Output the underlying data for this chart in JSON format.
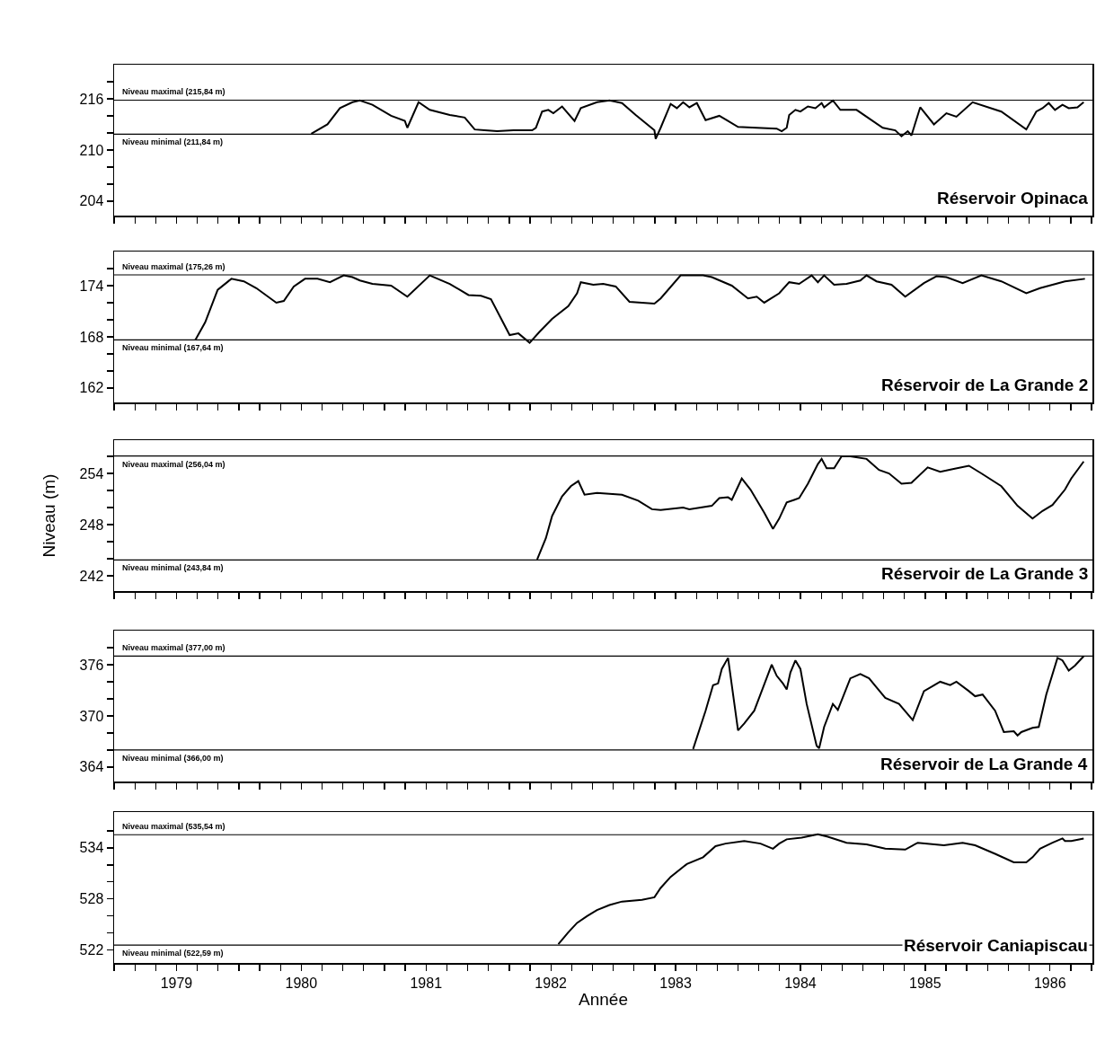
{
  "chart_data": [
    {
      "type": "line",
      "title": "Réservoir Opinaca",
      "tick_labels": "y",
      "grid": false,
      "line_style": "solid",
      "marker": "none",
      "xlim": [
        1979,
        1986.84
      ],
      "xticks": [
        {
          "value": 1979,
          "label": null
        },
        {
          "value": 1979.167,
          "label": null
        },
        {
          "value": 1979.333,
          "label": null
        },
        {
          "value": 1979.5,
          "label": null
        },
        {
          "value": 1979.667,
          "label": null
        },
        {
          "value": 1979.833,
          "label": null
        },
        {
          "value": 1980,
          "label": null
        },
        {
          "value": 1980.167,
          "label": null
        },
        {
          "value": 1980.333,
          "label": null
        },
        {
          "value": 1980.5,
          "label": null
        },
        {
          "value": 1980.667,
          "label": null
        },
        {
          "value": 1980.833,
          "label": null
        },
        {
          "value": 1981,
          "label": null
        },
        {
          "value": 1981.167,
          "label": null
        },
        {
          "value": 1981.333,
          "label": null
        },
        {
          "value": 1981.5,
          "label": null
        },
        {
          "value": 1981.667,
          "label": null
        },
        {
          "value": 1981.833,
          "label": null
        },
        {
          "value": 1982,
          "label": null
        },
        {
          "value": 1982.167,
          "label": null
        },
        {
          "value": 1982.333,
          "label": null
        },
        {
          "value": 1982.5,
          "label": null
        },
        {
          "value": 1982.667,
          "label": null
        },
        {
          "value": 1982.833,
          "label": null
        },
        {
          "value": 1983,
          "label": null
        },
        {
          "value": 1983.167,
          "label": null
        },
        {
          "value": 1983.333,
          "label": null
        },
        {
          "value": 1983.5,
          "label": null
        },
        {
          "value": 1983.667,
          "label": null
        },
        {
          "value": 1983.833,
          "label": null
        },
        {
          "value": 1984,
          "label": null
        },
        {
          "value": 1984.167,
          "label": null
        },
        {
          "value": 1984.333,
          "label": null
        },
        {
          "value": 1984.5,
          "label": null
        },
        {
          "value": 1984.667,
          "label": null
        },
        {
          "value": 1984.833,
          "label": null
        },
        {
          "value": 1985,
          "label": null
        },
        {
          "value": 1985.167,
          "label": null
        },
        {
          "value": 1985.333,
          "label": null
        },
        {
          "value": 1985.5,
          "label": null
        },
        {
          "value": 1985.667,
          "label": null
        },
        {
          "value": 1985.833,
          "label": null
        },
        {
          "value": 1986,
          "label": null
        },
        {
          "value": 1986.167,
          "label": null
        },
        {
          "value": 1986.333,
          "label": null
        },
        {
          "value": 1986.5,
          "label": null
        },
        {
          "value": 1986.667,
          "label": null
        },
        {
          "value": 1986.833,
          "label": null
        }
      ],
      "ylim": [
        202.3,
        220
      ],
      "yticks": [
        204,
        {
          "value": 206,
          "label": null
        },
        {
          "value": 208,
          "label": null
        },
        210,
        {
          "value": 212,
          "label": null
        },
        {
          "value": 214,
          "label": null
        },
        216,
        {
          "value": 218,
          "label": null
        }
      ],
      "ref_lines": [
        {
          "axis": "y",
          "value": 215.84,
          "label": "Niveau maximal (215,84 m)",
          "color": "#000000"
        },
        {
          "axis": "y",
          "value": 211.84,
          "label": "Niveau minimal (211,84 m)",
          "color": "#000000"
        }
      ],
      "series": [
        {
          "color": "#000000",
          "x": [
            1980.58,
            1980.71,
            1980.81,
            1980.91,
            1980.97,
            1981.07,
            1981.22,
            1981.33,
            1981.35,
            1981.44,
            1981.53,
            1981.69,
            1981.81,
            1981.89,
            1981.97,
            1982.07,
            1982.2,
            1982.35,
            1982.38,
            1982.43,
            1982.48,
            1982.52,
            1982.59,
            1982.69,
            1982.74,
            1982.87,
            1982.97,
            1983.07,
            1983.18,
            1983.33,
            1983.34,
            1983.38,
            1983.46,
            1983.51,
            1983.56,
            1983.61,
            1983.67,
            1983.74,
            1983.85,
            1983.92,
            1984.0,
            1984.15,
            1984.31,
            1984.35,
            1984.39,
            1984.41,
            1984.46,
            1984.5,
            1984.56,
            1984.62,
            1984.67,
            1984.69,
            1984.76,
            1984.82,
            1984.95,
            1985.16,
            1985.26,
            1985.31,
            1985.36,
            1985.39,
            1985.46,
            1985.57,
            1985.67,
            1985.75,
            1985.88,
            1986.11,
            1986.31,
            1986.39,
            1986.44,
            1986.49,
            1986.54,
            1986.6,
            1986.65,
            1986.72,
            1986.77
          ],
          "values": [
            211.9,
            213.0,
            214.9,
            215.6,
            215.8,
            215.3,
            214.0,
            213.4,
            212.6,
            215.6,
            214.7,
            214.1,
            213.8,
            212.4,
            212.3,
            212.2,
            212.3,
            212.3,
            212.6,
            214.5,
            214.7,
            214.3,
            215.1,
            213.4,
            214.9,
            215.6,
            215.8,
            215.5,
            214.1,
            212.3,
            211.3,
            212.6,
            215.4,
            214.9,
            215.6,
            215.0,
            215.5,
            213.5,
            214.0,
            213.4,
            212.7,
            212.6,
            212.5,
            212.2,
            212.6,
            214.1,
            214.7,
            214.5,
            215.1,
            214.9,
            215.5,
            215.0,
            215.8,
            214.7,
            214.7,
            212.6,
            212.3,
            211.6,
            212.2,
            211.7,
            215.0,
            213.0,
            214.3,
            213.9,
            215.6,
            214.5,
            212.4,
            214.5,
            214.9,
            215.5,
            214.7,
            215.3,
            214.9,
            215.0,
            215.6
          ]
        }
      ]
    },
    {
      "type": "line",
      "title": "Réservoir de La Grande 2",
      "tick_labels": "y",
      "grid": false,
      "line_style": "solid",
      "marker": "none",
      "xlim": [
        1979,
        1986.84
      ],
      "xticks": [
        {
          "value": 1979,
          "label": null
        },
        {
          "value": 1979.167,
          "label": null
        },
        {
          "value": 1979.333,
          "label": null
        },
        {
          "value": 1979.5,
          "label": null
        },
        {
          "value": 1979.667,
          "label": null
        },
        {
          "value": 1979.833,
          "label": null
        },
        {
          "value": 1980,
          "label": null
        },
        {
          "value": 1980.167,
          "label": null
        },
        {
          "value": 1980.333,
          "label": null
        },
        {
          "value": 1980.5,
          "label": null
        },
        {
          "value": 1980.667,
          "label": null
        },
        {
          "value": 1980.833,
          "label": null
        },
        {
          "value": 1981,
          "label": null
        },
        {
          "value": 1981.167,
          "label": null
        },
        {
          "value": 1981.333,
          "label": null
        },
        {
          "value": 1981.5,
          "label": null
        },
        {
          "value": 1981.667,
          "label": null
        },
        {
          "value": 1981.833,
          "label": null
        },
        {
          "value": 1982,
          "label": null
        },
        {
          "value": 1982.167,
          "label": null
        },
        {
          "value": 1982.333,
          "label": null
        },
        {
          "value": 1982.5,
          "label": null
        },
        {
          "value": 1982.667,
          "label": null
        },
        {
          "value": 1982.833,
          "label": null
        },
        {
          "value": 1983,
          "label": null
        },
        {
          "value": 1983.167,
          "label": null
        },
        {
          "value": 1983.333,
          "label": null
        },
        {
          "value": 1983.5,
          "label": null
        },
        {
          "value": 1983.667,
          "label": null
        },
        {
          "value": 1983.833,
          "label": null
        },
        {
          "value": 1984,
          "label": null
        },
        {
          "value": 1984.167,
          "label": null
        },
        {
          "value": 1984.333,
          "label": null
        },
        {
          "value": 1984.5,
          "label": null
        },
        {
          "value": 1984.667,
          "label": null
        },
        {
          "value": 1984.833,
          "label": null
        },
        {
          "value": 1985,
          "label": null
        },
        {
          "value": 1985.167,
          "label": null
        },
        {
          "value": 1985.333,
          "label": null
        },
        {
          "value": 1985.5,
          "label": null
        },
        {
          "value": 1985.667,
          "label": null
        },
        {
          "value": 1985.833,
          "label": null
        },
        {
          "value": 1986,
          "label": null
        },
        {
          "value": 1986.167,
          "label": null
        },
        {
          "value": 1986.333,
          "label": null
        },
        {
          "value": 1986.5,
          "label": null
        },
        {
          "value": 1986.667,
          "label": null
        },
        {
          "value": 1986.833,
          "label": null
        }
      ],
      "ylim": [
        160.3,
        178
      ],
      "yticks": [
        162,
        {
          "value": 164,
          "label": null
        },
        {
          "value": 166,
          "label": null
        },
        168,
        {
          "value": 170,
          "label": null
        },
        {
          "value": 172,
          "label": null
        },
        174,
        {
          "value": 176,
          "label": null
        }
      ],
      "ref_lines": [
        {
          "axis": "y",
          "value": 175.26,
          "label": "Niveau maximal (175,26 m)",
          "color": "#000000"
        },
        {
          "axis": "y",
          "value": 167.64,
          "label": "Niveau minimal (167,64 m)",
          "color": "#000000"
        }
      ],
      "series": [
        {
          "color": "#000000",
          "x": [
            1979.65,
            1979.73,
            1979.83,
            1979.94,
            1980.04,
            1980.14,
            1980.3,
            1980.36,
            1980.44,
            1980.53,
            1980.63,
            1980.73,
            1980.84,
            1980.91,
            1980.97,
            1981.07,
            1981.22,
            1981.35,
            1981.53,
            1981.69,
            1981.84,
            1981.94,
            1982.02,
            1982.17,
            1982.24,
            1982.33,
            1982.41,
            1982.51,
            1982.64,
            1982.71,
            1982.74,
            1982.84,
            1982.92,
            1983.02,
            1983.13,
            1983.33,
            1983.38,
            1983.54,
            1983.72,
            1983.79,
            1983.95,
            1984.08,
            1984.15,
            1984.21,
            1984.33,
            1984.41,
            1984.49,
            1984.59,
            1984.64,
            1984.69,
            1984.77,
            1984.87,
            1984.98,
            1985.03,
            1985.11,
            1985.23,
            1985.34,
            1985.49,
            1985.59,
            1985.67,
            1985.8,
            1985.95,
            1986.11,
            1986.31,
            1986.42,
            1986.62,
            1986.78
          ],
          "values": [
            167.6,
            169.7,
            173.5,
            174.8,
            174.5,
            173.7,
            172.0,
            172.2,
            173.9,
            174.8,
            174.8,
            174.4,
            175.2,
            175.0,
            174.6,
            174.2,
            174.0,
            172.7,
            175.2,
            174.2,
            172.9,
            172.8,
            172.4,
            168.2,
            168.4,
            167.3,
            168.6,
            170.1,
            171.6,
            173.1,
            174.4,
            174.1,
            174.2,
            173.9,
            172.1,
            171.9,
            172.5,
            175.2,
            175.2,
            175.0,
            174.0,
            172.5,
            172.7,
            172.0,
            173.1,
            174.4,
            174.2,
            175.2,
            174.4,
            175.2,
            174.1,
            174.2,
            174.6,
            175.2,
            174.5,
            174.1,
            172.7,
            174.3,
            175.1,
            175.0,
            174.3,
            175.2,
            174.5,
            173.1,
            173.7,
            174.5,
            174.8
          ]
        }
      ]
    },
    {
      "type": "line",
      "title": "Réservoir de La Grande 3",
      "ylabel": "Niveau (m)",
      "tick_labels": "y",
      "grid": false,
      "line_style": "solid",
      "marker": "none",
      "xlim": [
        1979,
        1986.84
      ],
      "xticks": [
        {
          "value": 1979,
          "label": null
        },
        {
          "value": 1979.167,
          "label": null
        },
        {
          "value": 1979.333,
          "label": null
        },
        {
          "value": 1979.5,
          "label": null
        },
        {
          "value": 1979.667,
          "label": null
        },
        {
          "value": 1979.833,
          "label": null
        },
        {
          "value": 1980,
          "label": null
        },
        {
          "value": 1980.167,
          "label": null
        },
        {
          "value": 1980.333,
          "label": null
        },
        {
          "value": 1980.5,
          "label": null
        },
        {
          "value": 1980.667,
          "label": null
        },
        {
          "value": 1980.833,
          "label": null
        },
        {
          "value": 1981,
          "label": null
        },
        {
          "value": 1981.167,
          "label": null
        },
        {
          "value": 1981.333,
          "label": null
        },
        {
          "value": 1981.5,
          "label": null
        },
        {
          "value": 1981.667,
          "label": null
        },
        {
          "value": 1981.833,
          "label": null
        },
        {
          "value": 1982,
          "label": null
        },
        {
          "value": 1982.167,
          "label": null
        },
        {
          "value": 1982.333,
          "label": null
        },
        {
          "value": 1982.5,
          "label": null
        },
        {
          "value": 1982.667,
          "label": null
        },
        {
          "value": 1982.833,
          "label": null
        },
        {
          "value": 1983,
          "label": null
        },
        {
          "value": 1983.167,
          "label": null
        },
        {
          "value": 1983.333,
          "label": null
        },
        {
          "value": 1983.5,
          "label": null
        },
        {
          "value": 1983.667,
          "label": null
        },
        {
          "value": 1983.833,
          "label": null
        },
        {
          "value": 1984,
          "label": null
        },
        {
          "value": 1984.167,
          "label": null
        },
        {
          "value": 1984.333,
          "label": null
        },
        {
          "value": 1984.5,
          "label": null
        },
        {
          "value": 1984.667,
          "label": null
        },
        {
          "value": 1984.833,
          "label": null
        },
        {
          "value": 1985,
          "label": null
        },
        {
          "value": 1985.167,
          "label": null
        },
        {
          "value": 1985.333,
          "label": null
        },
        {
          "value": 1985.5,
          "label": null
        },
        {
          "value": 1985.667,
          "label": null
        },
        {
          "value": 1985.833,
          "label": null
        },
        {
          "value": 1986,
          "label": null
        },
        {
          "value": 1986.167,
          "label": null
        },
        {
          "value": 1986.333,
          "label": null
        },
        {
          "value": 1986.5,
          "label": null
        },
        {
          "value": 1986.667,
          "label": null
        },
        {
          "value": 1986.833,
          "label": null
        }
      ],
      "ylim": [
        240.2,
        257.9
      ],
      "yticks": [
        242,
        {
          "value": 244,
          "label": null
        },
        {
          "value": 246,
          "label": null
        },
        248,
        {
          "value": 250,
          "label": null
        },
        {
          "value": 252,
          "label": null
        },
        254,
        {
          "value": 256,
          "label": null
        }
      ],
      "ref_lines": [
        {
          "axis": "y",
          "value": 256.04,
          "label": "Niveau maximal (256,04 m)",
          "color": "#000000"
        },
        {
          "axis": "y",
          "value": 243.84,
          "label": "Niveau minimal (243,84 m)",
          "color": "#000000"
        }
      ],
      "series": [
        {
          "color": "#000000",
          "x": [
            1982.39,
            1982.46,
            1982.51,
            1982.59,
            1982.66,
            1982.72,
            1982.77,
            1982.87,
            1983.07,
            1983.2,
            1983.31,
            1983.38,
            1983.56,
            1983.61,
            1983.79,
            1983.85,
            1983.92,
            1983.95,
            1984.03,
            1984.1,
            1984.21,
            1984.28,
            1984.33,
            1984.39,
            1984.45,
            1984.49,
            1984.56,
            1984.64,
            1984.67,
            1984.71,
            1984.77,
            1984.83,
            1984.9,
            1985.03,
            1985.13,
            1985.21,
            1985.31,
            1985.39,
            1985.52,
            1985.62,
            1985.72,
            1985.85,
            1985.95,
            1986.11,
            1986.24,
            1986.36,
            1986.44,
            1986.52,
            1986.62,
            1986.67,
            1986.77
          ],
          "values": [
            243.9,
            246.4,
            249.0,
            251.3,
            252.5,
            253.1,
            251.5,
            251.7,
            251.5,
            250.8,
            249.8,
            249.7,
            250.0,
            249.8,
            250.2,
            251.1,
            251.2,
            250.9,
            253.4,
            252.1,
            249.4,
            247.5,
            248.7,
            250.6,
            250.9,
            251.1,
            252.8,
            255.1,
            255.7,
            254.6,
            254.6,
            256.0,
            256.0,
            255.7,
            254.4,
            254.0,
            252.8,
            252.9,
            254.7,
            254.2,
            254.5,
            254.9,
            254.0,
            252.5,
            250.2,
            248.7,
            249.6,
            250.3,
            252.1,
            253.4,
            255.4
          ]
        }
      ]
    },
    {
      "type": "line",
      "title": "Réservoir de La Grande 4",
      "tick_labels": "y",
      "grid": false,
      "line_style": "solid",
      "marker": "none",
      "xlim": [
        1979,
        1986.84
      ],
      "xticks": [
        {
          "value": 1979,
          "label": null
        },
        {
          "value": 1979.167,
          "label": null
        },
        {
          "value": 1979.333,
          "label": null
        },
        {
          "value": 1979.5,
          "label": null
        },
        {
          "value": 1979.667,
          "label": null
        },
        {
          "value": 1979.833,
          "label": null
        },
        {
          "value": 1980,
          "label": null
        },
        {
          "value": 1980.167,
          "label": null
        },
        {
          "value": 1980.333,
          "label": null
        },
        {
          "value": 1980.5,
          "label": null
        },
        {
          "value": 1980.667,
          "label": null
        },
        {
          "value": 1980.833,
          "label": null
        },
        {
          "value": 1981,
          "label": null
        },
        {
          "value": 1981.167,
          "label": null
        },
        {
          "value": 1981.333,
          "label": null
        },
        {
          "value": 1981.5,
          "label": null
        },
        {
          "value": 1981.667,
          "label": null
        },
        {
          "value": 1981.833,
          "label": null
        },
        {
          "value": 1982,
          "label": null
        },
        {
          "value": 1982.167,
          "label": null
        },
        {
          "value": 1982.333,
          "label": null
        },
        {
          "value": 1982.5,
          "label": null
        },
        {
          "value": 1982.667,
          "label": null
        },
        {
          "value": 1982.833,
          "label": null
        },
        {
          "value": 1983,
          "label": null
        },
        {
          "value": 1983.167,
          "label": null
        },
        {
          "value": 1983.333,
          "label": null
        },
        {
          "value": 1983.5,
          "label": null
        },
        {
          "value": 1983.667,
          "label": null
        },
        {
          "value": 1983.833,
          "label": null
        },
        {
          "value": 1984,
          "label": null
        },
        {
          "value": 1984.167,
          "label": null
        },
        {
          "value": 1984.333,
          "label": null
        },
        {
          "value": 1984.5,
          "label": null
        },
        {
          "value": 1984.667,
          "label": null
        },
        {
          "value": 1984.833,
          "label": null
        },
        {
          "value": 1985,
          "label": null
        },
        {
          "value": 1985.167,
          "label": null
        },
        {
          "value": 1985.333,
          "label": null
        },
        {
          "value": 1985.5,
          "label": null
        },
        {
          "value": 1985.667,
          "label": null
        },
        {
          "value": 1985.833,
          "label": null
        },
        {
          "value": 1986,
          "label": null
        },
        {
          "value": 1986.167,
          "label": null
        },
        {
          "value": 1986.333,
          "label": null
        },
        {
          "value": 1986.5,
          "label": null
        },
        {
          "value": 1986.667,
          "label": null
        },
        {
          "value": 1986.833,
          "label": null
        }
      ],
      "ylim": [
        362.3,
        380
      ],
      "yticks": [
        364,
        {
          "value": 366,
          "label": null
        },
        {
          "value": 368,
          "label": null
        },
        370,
        {
          "value": 372,
          "label": null
        },
        {
          "value": 374,
          "label": null
        },
        376,
        {
          "value": 378,
          "label": null
        }
      ],
      "ref_lines": [
        {
          "axis": "y",
          "value": 377.0,
          "label": "Niveau maximal (377,00 m)",
          "color": "#000000"
        },
        {
          "axis": "y",
          "value": 366.0,
          "label": "Niveau minimal (366,00 m)",
          "color": "#000000"
        }
      ],
      "series": [
        {
          "color": "#000000",
          "x": [
            1983.64,
            1983.74,
            1983.8,
            1983.84,
            1983.87,
            1983.92,
            1984.0,
            1984.05,
            1984.13,
            1984.27,
            1984.31,
            1984.36,
            1984.39,
            1984.42,
            1984.46,
            1984.5,
            1984.55,
            1984.63,
            1984.65,
            1984.69,
            1984.76,
            1984.8,
            1984.9,
            1984.98,
            1985.05,
            1985.18,
            1985.29,
            1985.4,
            1985.49,
            1985.62,
            1985.7,
            1985.75,
            1985.85,
            1985.9,
            1985.96,
            1986.06,
            1986.13,
            1986.21,
            1986.24,
            1986.27,
            1986.36,
            1986.41,
            1986.47,
            1986.56,
            1986.6,
            1986.65,
            1986.7,
            1986.77
          ],
          "values": [
            366.1,
            370.6,
            373.6,
            373.8,
            375.5,
            376.8,
            368.3,
            369.1,
            370.6,
            376.0,
            374.7,
            373.8,
            373.1,
            375.1,
            376.5,
            375.5,
            371.4,
            366.5,
            366.2,
            368.7,
            371.4,
            370.7,
            374.4,
            374.9,
            374.4,
            372.1,
            371.4,
            369.5,
            372.9,
            374.0,
            373.6,
            374.0,
            372.9,
            372.3,
            372.5,
            370.6,
            368.1,
            368.2,
            367.7,
            368.1,
            368.6,
            368.7,
            372.5,
            376.8,
            376.5,
            375.3,
            375.9,
            377.0
          ]
        }
      ]
    },
    {
      "type": "line",
      "title": "Réservoir Caniapiscau",
      "xlabel": "Année",
      "grid": false,
      "line_style": "solid",
      "marker": "none",
      "xlim": [
        1979,
        1986.84
      ],
      "xticks": [
        {
          "value": 1979,
          "label": null
        },
        {
          "value": 1979.167,
          "label": null
        },
        {
          "value": 1979.333,
          "label": null
        },
        {
          "value": 1979.5,
          "label": "1979"
        },
        {
          "value": 1979.667,
          "label": null
        },
        {
          "value": 1979.833,
          "label": null
        },
        {
          "value": 1980,
          "label": null
        },
        {
          "value": 1980.167,
          "label": null
        },
        {
          "value": 1980.333,
          "label": null
        },
        {
          "value": 1980.5,
          "label": "1980"
        },
        {
          "value": 1980.667,
          "label": null
        },
        {
          "value": 1980.833,
          "label": null
        },
        {
          "value": 1981,
          "label": null
        },
        {
          "value": 1981.167,
          "label": null
        },
        {
          "value": 1981.333,
          "label": null
        },
        {
          "value": 1981.5,
          "label": "1981"
        },
        {
          "value": 1981.667,
          "label": null
        },
        {
          "value": 1981.833,
          "label": null
        },
        {
          "value": 1982,
          "label": null
        },
        {
          "value": 1982.167,
          "label": null
        },
        {
          "value": 1982.333,
          "label": null
        },
        {
          "value": 1982.5,
          "label": "1982"
        },
        {
          "value": 1982.667,
          "label": null
        },
        {
          "value": 1982.833,
          "label": null
        },
        {
          "value": 1983,
          "label": null
        },
        {
          "value": 1983.167,
          "label": null
        },
        {
          "value": 1983.333,
          "label": null
        },
        {
          "value": 1983.5,
          "label": "1983"
        },
        {
          "value": 1983.667,
          "label": null
        },
        {
          "value": 1983.833,
          "label": null
        },
        {
          "value": 1984,
          "label": null
        },
        {
          "value": 1984.167,
          "label": null
        },
        {
          "value": 1984.333,
          "label": null
        },
        {
          "value": 1984.5,
          "label": "1984"
        },
        {
          "value": 1984.667,
          "label": null
        },
        {
          "value": 1984.833,
          "label": null
        },
        {
          "value": 1985,
          "label": null
        },
        {
          "value": 1985.167,
          "label": null
        },
        {
          "value": 1985.333,
          "label": null
        },
        {
          "value": 1985.5,
          "label": "1985"
        },
        {
          "value": 1985.667,
          "label": null
        },
        {
          "value": 1985.833,
          "label": null
        },
        {
          "value": 1986,
          "label": null
        },
        {
          "value": 1986.167,
          "label": null
        },
        {
          "value": 1986.333,
          "label": null
        },
        {
          "value": 1986.5,
          "label": "1986"
        },
        {
          "value": 1986.667,
          "label": null
        },
        {
          "value": 1986.833,
          "label": null
        }
      ],
      "ylim": [
        520.5,
        538.2
      ],
      "yticks": [
        522,
        {
          "value": 524,
          "label": null
        },
        {
          "value": 526,
          "label": null
        },
        528,
        {
          "value": 530,
          "label": null
        },
        {
          "value": 532,
          "label": null
        },
        534,
        {
          "value": 536,
          "label": null
        }
      ],
      "ref_lines": [
        {
          "axis": "y",
          "value": 535.54,
          "label": "Niveau maximal (535,54 m)",
          "color": "#000000"
        },
        {
          "axis": "y",
          "value": 522.59,
          "label": "Niveau minimal (522,59 m)",
          "color": "#000000"
        }
      ],
      "series": [
        {
          "color": "#000000",
          "x": [
            1982.56,
            1982.64,
            1982.71,
            1982.79,
            1982.87,
            1982.97,
            1983.07,
            1983.23,
            1983.33,
            1983.38,
            1983.46,
            1983.59,
            1983.72,
            1983.82,
            1983.9,
            1984.05,
            1984.18,
            1984.28,
            1984.33,
            1984.39,
            1984.51,
            1984.64,
            1984.72,
            1984.87,
            1985.03,
            1985.18,
            1985.34,
            1985.44,
            1985.65,
            1985.8,
            1985.9,
            1986.06,
            1986.21,
            1986.31,
            1986.36,
            1986.42,
            1986.52,
            1986.6,
            1986.62,
            1986.67,
            1986.77
          ],
          "values": [
            522.7,
            524.1,
            525.2,
            526.0,
            526.7,
            527.3,
            527.7,
            527.9,
            528.2,
            529.3,
            530.6,
            532.1,
            532.9,
            534.2,
            534.5,
            534.8,
            534.5,
            533.9,
            534.5,
            535.0,
            535.2,
            535.6,
            535.3,
            534.6,
            534.4,
            533.9,
            533.8,
            534.6,
            534.3,
            534.6,
            534.3,
            533.3,
            532.3,
            532.3,
            532.9,
            533.9,
            534.6,
            535.1,
            534.8,
            534.8,
            535.1
          ]
        }
      ]
    }
  ]
}
